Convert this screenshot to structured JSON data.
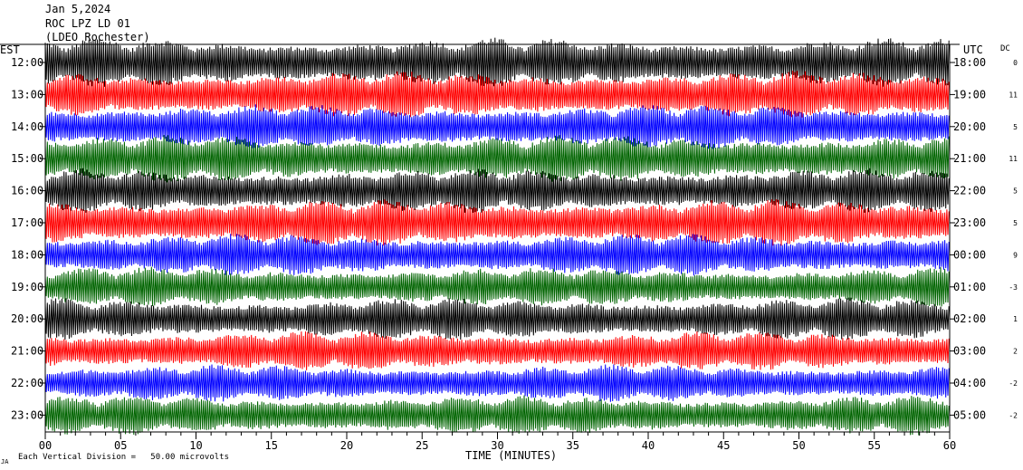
{
  "header": {
    "date": "Jan 5,2024",
    "station": "ROC LPZ LD 01",
    "network": "(LDEO Rochester)"
  },
  "axis_labels": {
    "left_tz": "EST",
    "right_tz": "UTC",
    "dc": "DC",
    "xlabel": "TIME (MINUTES)",
    "scale_note": "Each Vertical Division =   50.00 microvolts",
    "corner_mark": "JA"
  },
  "colors": {
    "trace_cycle": [
      "#000000",
      "#ff0000",
      "#0000ff",
      "#006400"
    ],
    "background": "#ffffff",
    "axis": "#000000"
  },
  "chart_data": {
    "type": "line",
    "title": "Jan 5,2024 ROC LPZ LD 01 (LDEO Rochester)",
    "xlabel": "TIME (MINUTES)",
    "ylabel": "",
    "xlim": [
      0,
      60
    ],
    "x_ticks": [
      "00",
      "05",
      "10",
      "15",
      "20",
      "25",
      "30",
      "35",
      "40",
      "45",
      "50",
      "55",
      "60"
    ],
    "rows": [
      {
        "est": "12:00",
        "utc": "18:00",
        "dc": "0",
        "color": "#000000",
        "amplitude": 1.0
      },
      {
        "est": "13:00",
        "utc": "19:00",
        "dc": "11",
        "color": "#ff0000",
        "amplitude": 0.95
      },
      {
        "est": "14:00",
        "utc": "20:00",
        "dc": "5",
        "color": "#0000ff",
        "amplitude": 0.9
      },
      {
        "est": "15:00",
        "utc": "21:00",
        "dc": "11",
        "color": "#006400",
        "amplitude": 0.95
      },
      {
        "est": "16:00",
        "utc": "22:00",
        "dc": "5",
        "color": "#000000",
        "amplitude": 0.9
      },
      {
        "est": "17:00",
        "utc": "23:00",
        "dc": "5",
        "color": "#ff0000",
        "amplitude": 0.95
      },
      {
        "est": "18:00",
        "utc": "00:00",
        "dc": "9",
        "color": "#0000ff",
        "amplitude": 0.85
      },
      {
        "est": "19:00",
        "utc": "01:00",
        "dc": "-3",
        "color": "#006400",
        "amplitude": 0.8
      },
      {
        "est": "20:00",
        "utc": "02:00",
        "dc": "1",
        "color": "#000000",
        "amplitude": 0.85
      },
      {
        "est": "21:00",
        "utc": "03:00",
        "dc": "2",
        "color": "#ff0000",
        "amplitude": 0.8
      },
      {
        "est": "22:00",
        "utc": "04:00",
        "dc": "-2",
        "color": "#0000ff",
        "amplitude": 0.75
      },
      {
        "est": "23:00",
        "utc": "05:00",
        "dc": "-2",
        "color": "#006400",
        "amplitude": 0.8
      }
    ]
  }
}
